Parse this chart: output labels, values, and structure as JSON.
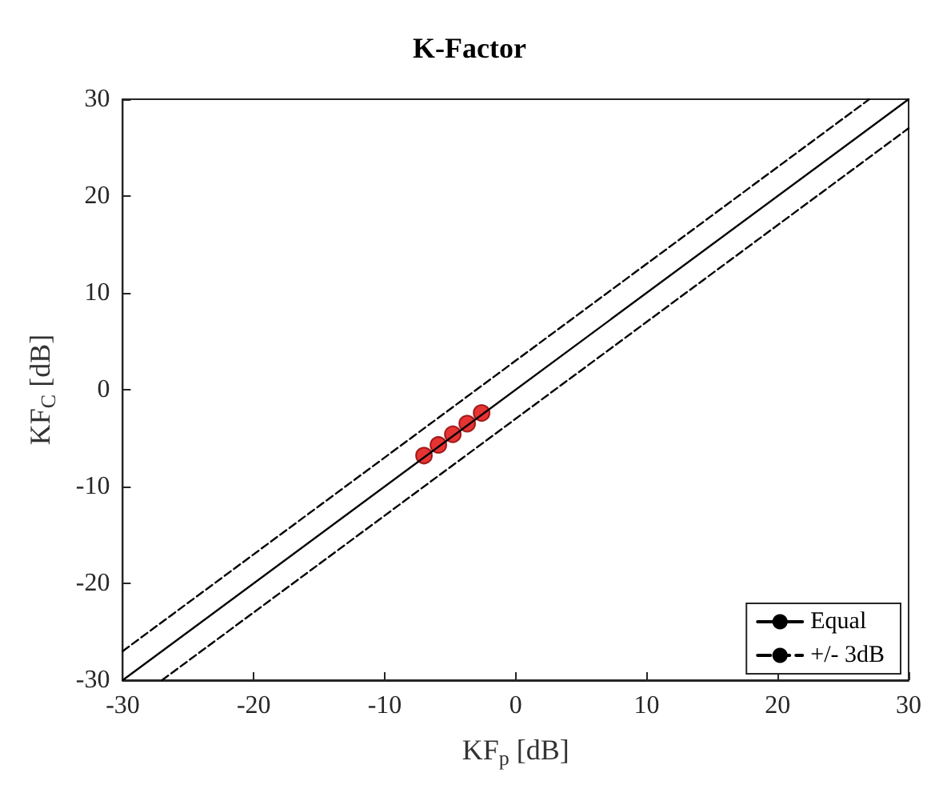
{
  "chart_data": {
    "type": "scatter",
    "title": "K-Factor",
    "xlabel": "KF$_{p}$ [dB]",
    "ylabel": "KF$_{C}$ [dB]",
    "xlim": [
      -30,
      30
    ],
    "ylim": [
      -30,
      30
    ],
    "xticks": [
      -30,
      -20,
      -10,
      0,
      10,
      20,
      30
    ],
    "yticks": [
      -30,
      -20,
      -10,
      0,
      10,
      20,
      30
    ],
    "grid": false,
    "legend": "bottom right",
    "series": [
      {
        "type": "line",
        "name": "Equal",
        "color": "#000000",
        "line_style": "solid",
        "marker": "none",
        "x": [
          -30,
          30
        ],
        "values": [
          -30,
          30
        ]
      },
      {
        "type": "line",
        "name": "+/- 3dB",
        "color": "#000000",
        "line_style": "dashed",
        "marker": "none",
        "x": [
          -30,
          27
        ],
        "values": [
          -27,
          30
        ]
      },
      {
        "type": "line",
        "color": "#000000",
        "line_style": "dashed",
        "marker": "none",
        "x": [
          -27,
          30
        ],
        "values": [
          -30,
          27
        ]
      },
      {
        "color": "#e00000",
        "marker": "circle",
        "x": [
          -7,
          -5.9,
          -4.8,
          -3.7,
          -2.6
        ],
        "values": [
          -6.8,
          -5.7,
          -4.6,
          -3.5,
          -2.4
        ]
      }
    ]
  }
}
